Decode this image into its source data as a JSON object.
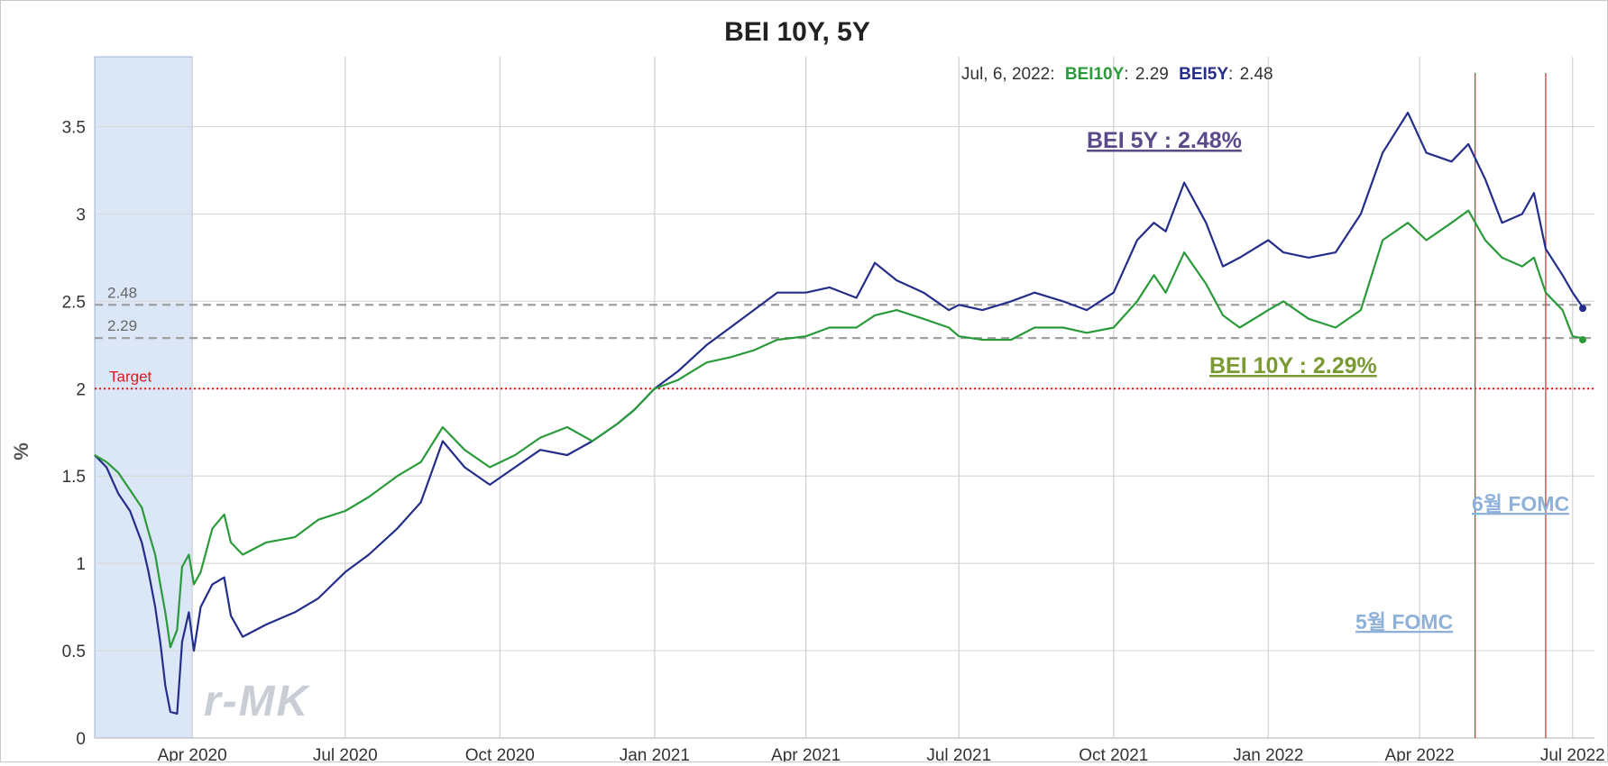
{
  "chart_data": {
    "type": "line",
    "title": "BEI 10Y, 5Y",
    "ylabel": "%",
    "ylim": [
      0,
      3.9
    ],
    "yticks": [
      "0",
      "0.5",
      "1",
      "1.5",
      "2",
      "2.5",
      "3",
      "3.5"
    ],
    "yticks_values": [
      0,
      0.5,
      1,
      1.5,
      2,
      2.5,
      3,
      3.5
    ],
    "x_range": [
      "2020-02-03",
      "2022-07-14"
    ],
    "xticks": [
      {
        "date": "2020-04-01",
        "label": "Apr 2020"
      },
      {
        "date": "2020-07-01",
        "label": "Jul 2020"
      },
      {
        "date": "2020-10-01",
        "label": "Oct 2020"
      },
      {
        "date": "2021-01-01",
        "label": "Jan 2021"
      },
      {
        "date": "2021-04-01",
        "label": "Apr 2021"
      },
      {
        "date": "2021-07-01",
        "label": "Jul 2021"
      },
      {
        "date": "2021-10-01",
        "label": "Oct 2021"
      },
      {
        "date": "2022-01-01",
        "label": "Jan 2022"
      },
      {
        "date": "2022-04-01",
        "label": "Apr 2022"
      },
      {
        "date": "2022-07-01",
        "label": "Jul 2022"
      }
    ],
    "grid": true,
    "recession_band": {
      "start": "2020-02-03",
      "end": "2020-04-01",
      "color": "#dbe6f6"
    },
    "series": [
      {
        "name": "BEI10Y",
        "color": "#2a9a3b",
        "points": [
          [
            "2020-02-03",
            1.62
          ],
          [
            "2020-02-10",
            1.58
          ],
          [
            "2020-02-17",
            1.52
          ],
          [
            "2020-02-24",
            1.42
          ],
          [
            "2020-03-02",
            1.32
          ],
          [
            "2020-03-06",
            1.18
          ],
          [
            "2020-03-10",
            1.05
          ],
          [
            "2020-03-13",
            0.88
          ],
          [
            "2020-03-16",
            0.72
          ],
          [
            "2020-03-19",
            0.52
          ],
          [
            "2020-03-23",
            0.62
          ],
          [
            "2020-03-26",
            0.98
          ],
          [
            "2020-03-30",
            1.05
          ],
          [
            "2020-04-02",
            0.88
          ],
          [
            "2020-04-06",
            0.95
          ],
          [
            "2020-04-13",
            1.2
          ],
          [
            "2020-04-20",
            1.28
          ],
          [
            "2020-04-24",
            1.12
          ],
          [
            "2020-05-01",
            1.05
          ],
          [
            "2020-05-15",
            1.12
          ],
          [
            "2020-06-01",
            1.15
          ],
          [
            "2020-06-15",
            1.25
          ],
          [
            "2020-07-01",
            1.3
          ],
          [
            "2020-07-15",
            1.38
          ],
          [
            "2020-08-01",
            1.5
          ],
          [
            "2020-08-15",
            1.58
          ],
          [
            "2020-08-28",
            1.78
          ],
          [
            "2020-09-10",
            1.65
          ],
          [
            "2020-09-25",
            1.55
          ],
          [
            "2020-10-10",
            1.62
          ],
          [
            "2020-10-25",
            1.72
          ],
          [
            "2020-11-10",
            1.78
          ],
          [
            "2020-11-25",
            1.7
          ],
          [
            "2020-12-10",
            1.8
          ],
          [
            "2020-12-20",
            1.88
          ],
          [
            "2021-01-01",
            2.0
          ],
          [
            "2021-01-15",
            2.05
          ],
          [
            "2021-02-01",
            2.15
          ],
          [
            "2021-02-15",
            2.18
          ],
          [
            "2021-03-01",
            2.22
          ],
          [
            "2021-03-15",
            2.28
          ],
          [
            "2021-04-01",
            2.3
          ],
          [
            "2021-04-15",
            2.35
          ],
          [
            "2021-05-01",
            2.35
          ],
          [
            "2021-05-12",
            2.42
          ],
          [
            "2021-05-25",
            2.45
          ],
          [
            "2021-06-10",
            2.4
          ],
          [
            "2021-06-25",
            2.35
          ],
          [
            "2021-07-01",
            2.3
          ],
          [
            "2021-07-15",
            2.28
          ],
          [
            "2021-08-01",
            2.28
          ],
          [
            "2021-08-15",
            2.35
          ],
          [
            "2021-09-01",
            2.35
          ],
          [
            "2021-09-15",
            2.32
          ],
          [
            "2021-10-01",
            2.35
          ],
          [
            "2021-10-15",
            2.5
          ],
          [
            "2021-10-25",
            2.65
          ],
          [
            "2021-11-01",
            2.55
          ],
          [
            "2021-11-12",
            2.78
          ],
          [
            "2021-11-25",
            2.6
          ],
          [
            "2021-12-05",
            2.42
          ],
          [
            "2021-12-15",
            2.35
          ],
          [
            "2022-01-01",
            2.45
          ],
          [
            "2022-01-10",
            2.5
          ],
          [
            "2022-01-25",
            2.4
          ],
          [
            "2022-02-10",
            2.35
          ],
          [
            "2022-02-25",
            2.45
          ],
          [
            "2022-03-10",
            2.85
          ],
          [
            "2022-03-25",
            2.95
          ],
          [
            "2022-04-05",
            2.85
          ],
          [
            "2022-04-20",
            2.95
          ],
          [
            "2022-04-30",
            3.02
          ],
          [
            "2022-05-10",
            2.85
          ],
          [
            "2022-05-20",
            2.75
          ],
          [
            "2022-06-01",
            2.7
          ],
          [
            "2022-06-08",
            2.75
          ],
          [
            "2022-06-15",
            2.55
          ],
          [
            "2022-06-25",
            2.45
          ],
          [
            "2022-07-01",
            2.3
          ],
          [
            "2022-07-06",
            2.29
          ],
          [
            "2022-07-07",
            2.28
          ]
        ]
      },
      {
        "name": "BEI5Y",
        "color": "#242d8a",
        "points": [
          [
            "2020-02-03",
            1.62
          ],
          [
            "2020-02-10",
            1.55
          ],
          [
            "2020-02-17",
            1.4
          ],
          [
            "2020-02-24",
            1.3
          ],
          [
            "2020-03-02",
            1.12
          ],
          [
            "2020-03-06",
            0.95
          ],
          [
            "2020-03-10",
            0.75
          ],
          [
            "2020-03-13",
            0.55
          ],
          [
            "2020-03-16",
            0.3
          ],
          [
            "2020-03-19",
            0.15
          ],
          [
            "2020-03-23",
            0.14
          ],
          [
            "2020-03-26",
            0.55
          ],
          [
            "2020-03-30",
            0.72
          ],
          [
            "2020-04-02",
            0.5
          ],
          [
            "2020-04-06",
            0.75
          ],
          [
            "2020-04-13",
            0.88
          ],
          [
            "2020-04-20",
            0.92
          ],
          [
            "2020-04-24",
            0.7
          ],
          [
            "2020-05-01",
            0.58
          ],
          [
            "2020-05-15",
            0.65
          ],
          [
            "2020-06-01",
            0.72
          ],
          [
            "2020-06-15",
            0.8
          ],
          [
            "2020-07-01",
            0.95
          ],
          [
            "2020-07-15",
            1.05
          ],
          [
            "2020-08-01",
            1.2
          ],
          [
            "2020-08-15",
            1.35
          ],
          [
            "2020-08-28",
            1.7
          ],
          [
            "2020-09-10",
            1.55
          ],
          [
            "2020-09-25",
            1.45
          ],
          [
            "2020-10-10",
            1.55
          ],
          [
            "2020-10-25",
            1.65
          ],
          [
            "2020-11-10",
            1.62
          ],
          [
            "2020-11-25",
            1.7
          ],
          [
            "2020-12-10",
            1.8
          ],
          [
            "2020-12-20",
            1.88
          ],
          [
            "2021-01-01",
            2.0
          ],
          [
            "2021-01-15",
            2.1
          ],
          [
            "2021-02-01",
            2.25
          ],
          [
            "2021-02-15",
            2.35
          ],
          [
            "2021-03-01",
            2.45
          ],
          [
            "2021-03-15",
            2.55
          ],
          [
            "2021-04-01",
            2.55
          ],
          [
            "2021-04-15",
            2.58
          ],
          [
            "2021-05-01",
            2.52
          ],
          [
            "2021-05-12",
            2.72
          ],
          [
            "2021-05-25",
            2.62
          ],
          [
            "2021-06-10",
            2.55
          ],
          [
            "2021-06-25",
            2.45
          ],
          [
            "2021-07-01",
            2.48
          ],
          [
            "2021-07-15",
            2.45
          ],
          [
            "2021-08-01",
            2.5
          ],
          [
            "2021-08-15",
            2.55
          ],
          [
            "2021-09-01",
            2.5
          ],
          [
            "2021-09-15",
            2.45
          ],
          [
            "2021-10-01",
            2.55
          ],
          [
            "2021-10-15",
            2.85
          ],
          [
            "2021-10-25",
            2.95
          ],
          [
            "2021-11-01",
            2.9
          ],
          [
            "2021-11-12",
            3.18
          ],
          [
            "2021-11-25",
            2.95
          ],
          [
            "2021-12-05",
            2.7
          ],
          [
            "2021-12-15",
            2.75
          ],
          [
            "2022-01-01",
            2.85
          ],
          [
            "2022-01-10",
            2.78
          ],
          [
            "2022-01-25",
            2.75
          ],
          [
            "2022-02-10",
            2.78
          ],
          [
            "2022-02-25",
            3.0
          ],
          [
            "2022-03-10",
            3.35
          ],
          [
            "2022-03-25",
            3.58
          ],
          [
            "2022-04-05",
            3.35
          ],
          [
            "2022-04-20",
            3.3
          ],
          [
            "2022-04-30",
            3.4
          ],
          [
            "2022-05-10",
            3.2
          ],
          [
            "2022-05-20",
            2.95
          ],
          [
            "2022-06-01",
            3.0
          ],
          [
            "2022-06-08",
            3.12
          ],
          [
            "2022-06-15",
            2.8
          ],
          [
            "2022-06-25",
            2.65
          ],
          [
            "2022-07-01",
            2.55
          ],
          [
            "2022-07-06",
            2.48
          ],
          [
            "2022-07-07",
            2.46
          ]
        ]
      }
    ],
    "reference_lines": [
      {
        "value": 2.48,
        "label": "2.48",
        "style": "dashed",
        "color": "#a0a0a0"
      },
      {
        "value": 2.29,
        "label": "2.29",
        "style": "dashed",
        "color": "#a0a0a0"
      },
      {
        "value": 2.0,
        "label": "Target",
        "style": "dotted",
        "color": "#e0191f"
      }
    ],
    "event_lines": [
      {
        "date": "2022-05-04",
        "label": "5월 FOMC",
        "color": "#c9393d"
      },
      {
        "date": "2022-06-15",
        "label": "6월 FOMC",
        "color": "#c9393d"
      }
    ],
    "readout": {
      "date": "Jul, 6, 2022:",
      "s1_name": "BEI10Y",
      "s1_sep": ":",
      "s1_value": "2.29",
      "s2_name": "BEI5Y",
      "s2_sep": ":",
      "s2_value": "2.48"
    },
    "callouts": {
      "bei5y": {
        "text": "BEI 5Y : 2.48%",
        "color": "#5b4a8a"
      },
      "bei10y": {
        "text": "BEI 10Y : 2.29%",
        "color": "#7a9a32"
      }
    },
    "watermark": "r-MK"
  }
}
